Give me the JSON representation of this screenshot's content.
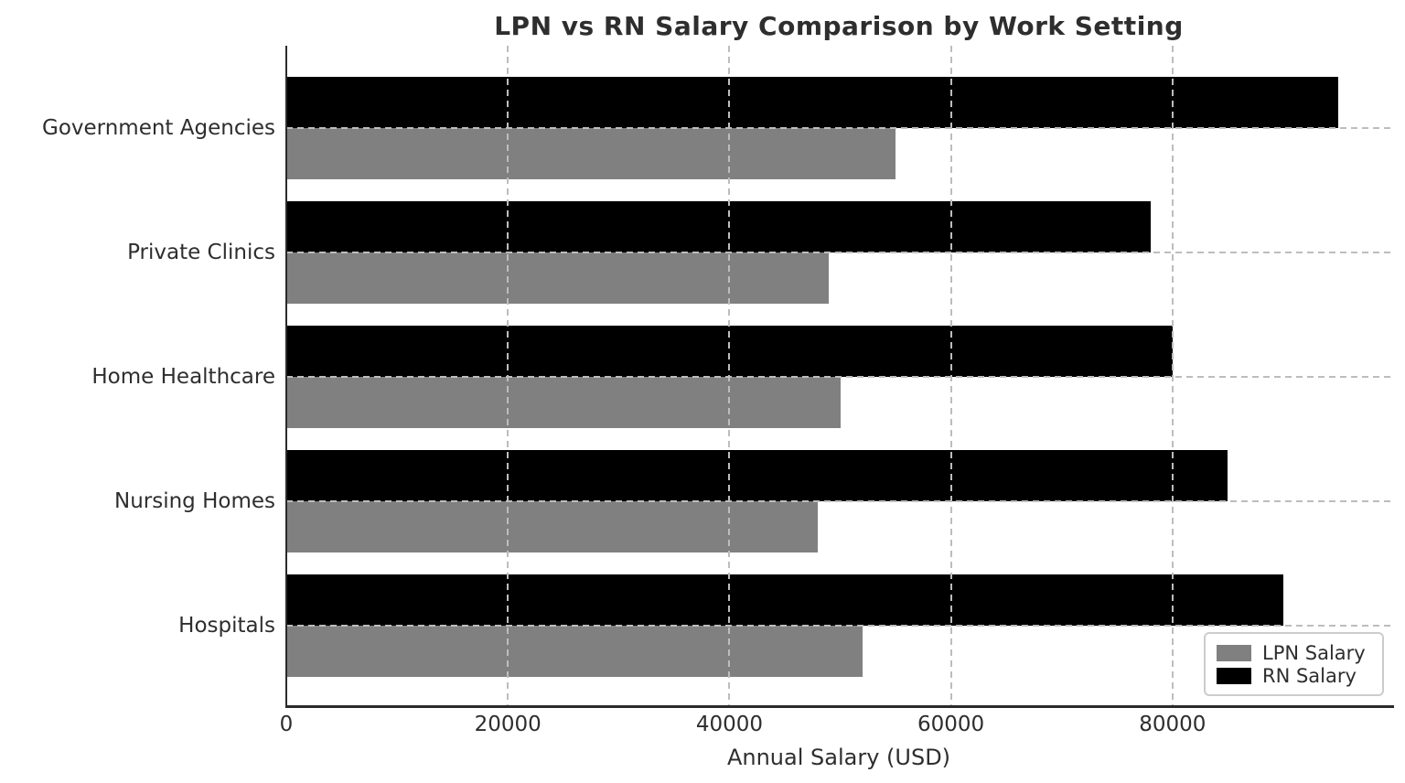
{
  "figure": {
    "title": "LPN vs RN Salary Comparison by Work Setting",
    "xlabel": "Annual Salary (USD)"
  },
  "legend": {
    "position": "lower right",
    "items": [
      {
        "label": "LPN Salary",
        "color": "#808080"
      },
      {
        "label": "RN Salary",
        "color": "#000000"
      }
    ]
  },
  "colors": {
    "background": "#ffffff",
    "text": "#2e2e2e",
    "grid": "#bdbdbd",
    "spine": "#2a2a2a",
    "lpn_bar": "#808080",
    "rn_bar": "#000000"
  },
  "chart_data": {
    "type": "bar",
    "orientation": "horizontal",
    "title": "LPN vs RN Salary Comparison by Work Setting",
    "xlabel": "Annual Salary (USD)",
    "ylabel": "",
    "categories_top_to_bottom": [
      "Government Agencies",
      "Private Clinics",
      "Home Healthcare",
      "Nursing Homes",
      "Hospitals"
    ],
    "series": [
      {
        "name": "LPN Salary",
        "color": "#808080",
        "values_top_to_bottom": [
          55000,
          49000,
          50000,
          48000,
          52000
        ]
      },
      {
        "name": "RN Salary",
        "color": "#000000",
        "values_top_to_bottom": [
          95000,
          78000,
          80000,
          85000,
          90000
        ]
      }
    ],
    "xticks": [
      0,
      20000,
      40000,
      60000,
      80000
    ],
    "xtick_labels": [
      "0",
      "20000",
      "40000",
      "60000",
      "80000"
    ],
    "xlim": [
      0,
      99750
    ],
    "grid": "dashed",
    "legend_position": "lower right"
  }
}
